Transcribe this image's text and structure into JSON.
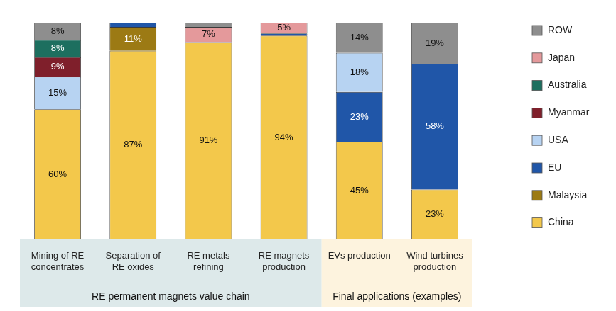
{
  "chart_data": {
    "type": "bar",
    "stacked": true,
    "data_labels": true,
    "grid": false,
    "tick_labels": "x",
    "legend": "right",
    "ylim": [
      0,
      100
    ],
    "categories": [
      "Mining of RE concentrates",
      "Separation of RE oxides",
      "RE metals refining",
      "RE magnets production",
      "EVs production",
      "Wind turbines production"
    ],
    "groups": [
      {
        "label": "RE permanent magnets value chain",
        "categories": [
          "Mining of RE concentrates",
          "Separation of RE oxides",
          "RE metals refining",
          "RE magnets production"
        ]
      },
      {
        "label": "Final applications (examples)",
        "categories": [
          "EVs production",
          "Wind turbines production"
        ]
      }
    ],
    "series": [
      {
        "name": "China",
        "color": "#f3c84b",
        "values": [
          60,
          87,
          91,
          94,
          45,
          23
        ],
        "value_labels": [
          "60%",
          "87%",
          "91%",
          "94%",
          "45%",
          "23%"
        ]
      },
      {
        "name": "Malaysia",
        "color": "#9c7a14",
        "values": [
          null,
          11,
          null,
          null,
          null,
          null
        ],
        "value_labels": [
          null,
          "11%",
          null,
          null,
          null,
          null
        ]
      },
      {
        "name": "EU",
        "color": "#2056a8",
        "values": [
          null,
          2,
          null,
          1,
          23,
          58
        ],
        "value_labels": [
          null,
          null,
          null,
          null,
          "23%",
          "58%"
        ]
      },
      {
        "name": "USA",
        "color": "#b7d3f2",
        "values": [
          15,
          null,
          null,
          null,
          18,
          null
        ],
        "value_labels": [
          "15%",
          null,
          null,
          null,
          "18%",
          null
        ]
      },
      {
        "name": "Myanmar",
        "color": "#7f1f2b",
        "values": [
          9,
          null,
          null,
          null,
          null,
          null
        ],
        "value_labels": [
          "9%",
          null,
          null,
          null,
          null,
          null
        ]
      },
      {
        "name": "Australia",
        "color": "#1d6f5f",
        "values": [
          8,
          null,
          null,
          null,
          null,
          null
        ],
        "value_labels": [
          "8%",
          null,
          null,
          null,
          null,
          null
        ]
      },
      {
        "name": "Japan",
        "color": "#e4999b",
        "values": [
          null,
          null,
          7,
          5,
          null,
          null
        ],
        "value_labels": [
          null,
          null,
          "7%",
          "5%",
          null,
          null
        ]
      },
      {
        "name": "ROW",
        "color": "#8e8e8e",
        "values": [
          8,
          null,
          2,
          null,
          14,
          19
        ],
        "value_labels": [
          "8%",
          null,
          null,
          null,
          "14%",
          "19%"
        ]
      }
    ]
  }
}
